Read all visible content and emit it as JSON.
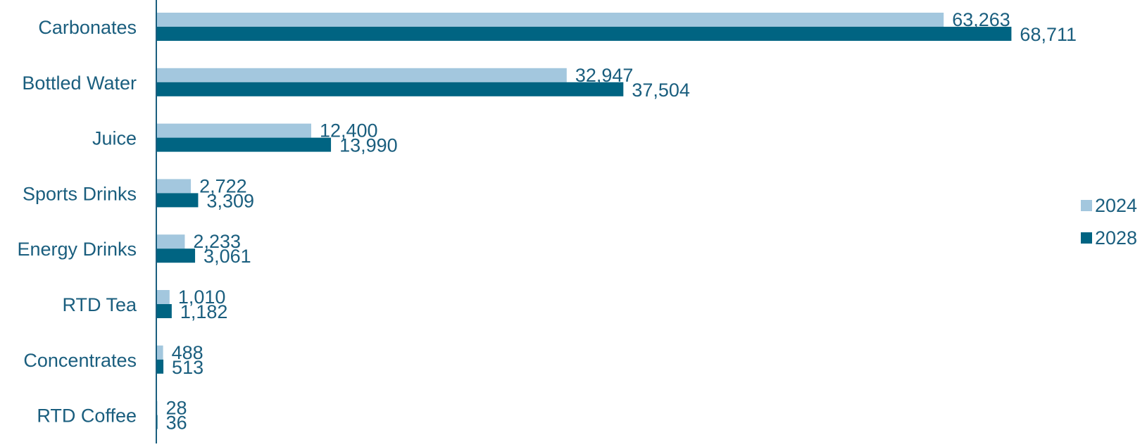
{
  "chart_data": {
    "type": "bar",
    "orientation": "horizontal",
    "categories": [
      "Carbonates",
      "Bottled Water",
      "Juice",
      "Sports Drinks",
      "Energy Drinks",
      "RTD Tea",
      "Concentrates",
      "RTD Coffee"
    ],
    "series": [
      {
        "name": "2024",
        "values": [
          63263,
          32947,
          12400,
          2722,
          2233,
          1010,
          488,
          28
        ],
        "labels": [
          "63,263",
          "32,947",
          "12,400",
          "2,722",
          "2,233",
          "1,010",
          "488",
          "28"
        ],
        "color": "#a3c7de"
      },
      {
        "name": "2028",
        "values": [
          68711,
          37504,
          13990,
          3309,
          3061,
          1182,
          513,
          36
        ],
        "labels": [
          "68,711",
          "37,504",
          "13,990",
          "3,309",
          "3,061",
          "1,182",
          "513",
          "36"
        ],
        "color": "#006482"
      }
    ],
    "title": "",
    "xlabel": "",
    "ylabel": "",
    "xlim": [
      0,
      80000
    ],
    "grid": false,
    "legend_position": "right",
    "label_color": "#1a5e7e",
    "axis_color": "#1a5e7e"
  }
}
